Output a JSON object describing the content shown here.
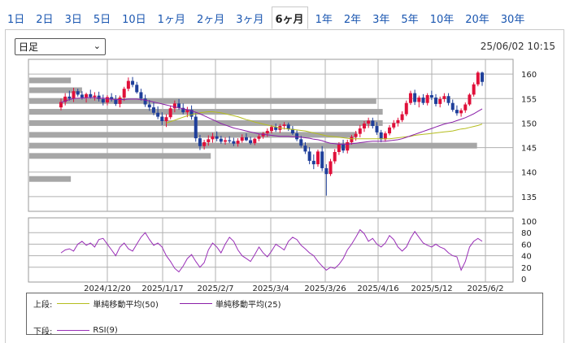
{
  "tabs": [
    {
      "label": "1日",
      "active": false
    },
    {
      "label": "2日",
      "active": false
    },
    {
      "label": "3日",
      "active": false
    },
    {
      "label": "5日",
      "active": false
    },
    {
      "label": "10日",
      "active": false
    },
    {
      "label": "1ヶ月",
      "active": false
    },
    {
      "label": "2ヶ月",
      "active": false
    },
    {
      "label": "3ヶ月",
      "active": false
    },
    {
      "label": "6ヶ月",
      "active": true
    },
    {
      "label": "1年",
      "active": false
    },
    {
      "label": "2年",
      "active": false
    },
    {
      "label": "3年",
      "active": false
    },
    {
      "label": "5年",
      "active": false
    },
    {
      "label": "10年",
      "active": false
    },
    {
      "label": "20年",
      "active": false
    },
    {
      "label": "30年",
      "active": false
    }
  ],
  "select": {
    "value": "日足"
  },
  "datetime": "25/06/02 10:15",
  "legend": {
    "upper_label": "上段:",
    "lower_label": "下段:",
    "sma50": "単純移動平均(50)",
    "sma25": "単純移動平均(25)",
    "rsi": "RSI(9)"
  },
  "colors": {
    "up": "#e0103a",
    "down": "#1f3f9a",
    "sma50": "#b5bd1e",
    "sma25": "#8a1fa8",
    "rsi": "#9a2fb8",
    "volume_bar": "#a6a6a6",
    "grid": "#b0b0b0",
    "link": "#1a56b0"
  },
  "chart_data": [
    {
      "type": "candlestick",
      "ylim": [
        132,
        163
      ],
      "yticks": [
        135,
        140,
        145,
        150,
        155,
        160
      ],
      "xticks": [
        "2024/12/20",
        "2025/1/17",
        "2025/2/7",
        "2025/3/4",
        "2025/3/26",
        "2025/4/16",
        "2025/5/12",
        "2025/6/2"
      ],
      "candles": [
        [
          153.2,
          155.0,
          152.6,
          154.3
        ],
        [
          154.3,
          156.1,
          153.6,
          155.4
        ],
        [
          155.4,
          156.6,
          154.6,
          155.0
        ],
        [
          155.0,
          157.2,
          154.3,
          156.5
        ],
        [
          156.5,
          157.0,
          155.4,
          155.8
        ],
        [
          155.8,
          156.5,
          154.8,
          155.2
        ],
        [
          155.2,
          156.2,
          154.2,
          155.9
        ],
        [
          155.9,
          156.8,
          155.0,
          155.3
        ],
        [
          155.3,
          156.3,
          154.6,
          155.6
        ],
        [
          155.6,
          156.4,
          154.4,
          154.9
        ],
        [
          154.9,
          155.8,
          153.6,
          154.2
        ],
        [
          154.2,
          155.7,
          153.6,
          155.3
        ],
        [
          155.3,
          156.1,
          154.4,
          154.8
        ],
        [
          154.8,
          155.7,
          153.5,
          153.9
        ],
        [
          153.9,
          155.6,
          153.2,
          155.2
        ],
        [
          155.2,
          157.4,
          154.5,
          157.0
        ],
        [
          157.0,
          159.3,
          156.5,
          158.6
        ],
        [
          158.6,
          159.4,
          157.3,
          157.8
        ],
        [
          157.8,
          158.4,
          156.0,
          156.3
        ],
        [
          156.3,
          157.0,
          154.6,
          155.0
        ],
        [
          155.0,
          155.8,
          153.3,
          153.8
        ],
        [
          153.8,
          154.7,
          152.5,
          153.2
        ],
        [
          153.2,
          154.2,
          151.6,
          152.1
        ],
        [
          152.1,
          153.4,
          150.8,
          151.3
        ],
        [
          151.3,
          152.2,
          149.6,
          150.4
        ],
        [
          150.4,
          151.8,
          149.2,
          151.2
        ],
        [
          151.2,
          153.6,
          150.8,
          153.0
        ],
        [
          153.0,
          154.6,
          152.2,
          154.0
        ],
        [
          154.0,
          154.9,
          152.7,
          153.1
        ],
        [
          153.1,
          154.0,
          151.8,
          152.2
        ],
        [
          152.2,
          153.3,
          151.2,
          152.7
        ],
        [
          152.7,
          153.6,
          150.7,
          151.3
        ],
        [
          151.3,
          152.1,
          146.2,
          146.9
        ],
        [
          146.9,
          147.6,
          144.5,
          145.3
        ],
        [
          145.3,
          146.6,
          144.6,
          146.1
        ],
        [
          146.1,
          147.5,
          145.4,
          146.7
        ],
        [
          146.7,
          148.0,
          146.0,
          147.3
        ],
        [
          147.3,
          148.3,
          146.3,
          146.8
        ],
        [
          146.8,
          147.4,
          145.8,
          146.2
        ],
        [
          146.2,
          147.1,
          145.6,
          146.5
        ],
        [
          146.5,
          147.3,
          145.9,
          146.3
        ],
        [
          146.3,
          147.0,
          145.3,
          145.8
        ],
        [
          145.8,
          146.9,
          145.2,
          146.4
        ],
        [
          146.4,
          147.7,
          146.0,
          147.1
        ],
        [
          147.1,
          147.9,
          146.3,
          146.5
        ],
        [
          146.5,
          147.2,
          145.6,
          145.9
        ],
        [
          145.9,
          147.0,
          145.5,
          146.8
        ],
        [
          146.8,
          147.8,
          146.3,
          147.3
        ],
        [
          147.3,
          148.2,
          146.8,
          147.9
        ],
        [
          147.9,
          148.9,
          147.2,
          148.4
        ],
        [
          148.4,
          149.6,
          147.9,
          149.2
        ],
        [
          149.2,
          149.9,
          148.2,
          148.6
        ],
        [
          148.6,
          149.8,
          148.0,
          149.4
        ],
        [
          149.4,
          150.2,
          148.7,
          149.7
        ],
        [
          149.7,
          150.1,
          148.4,
          148.8
        ],
        [
          148.8,
          149.4,
          147.6,
          147.9
        ],
        [
          147.9,
          148.5,
          146.3,
          146.7
        ],
        [
          146.7,
          147.4,
          145.0,
          145.4
        ],
        [
          145.4,
          146.1,
          143.7,
          144.2
        ],
        [
          144.2,
          145.1,
          141.6,
          142.3
        ],
        [
          142.3,
          143.6,
          140.6,
          141.6
        ],
        [
          141.6,
          144.6,
          141.1,
          144.2
        ],
        [
          144.2,
          145.3,
          140.2,
          140.8
        ],
        [
          140.8,
          141.6,
          135.2,
          139.6
        ],
        [
          139.6,
          142.7,
          139.2,
          142.2
        ],
        [
          142.2,
          144.7,
          141.7,
          144.1
        ],
        [
          144.1,
          146.1,
          143.5,
          145.6
        ],
        [
          145.6,
          146.6,
          143.9,
          144.4
        ],
        [
          144.4,
          146.6,
          143.8,
          146.1
        ],
        [
          146.1,
          147.6,
          145.6,
          147.2
        ],
        [
          147.2,
          148.4,
          146.4,
          147.8
        ],
        [
          147.8,
          149.6,
          147.1,
          148.9
        ],
        [
          148.9,
          150.4,
          148.2,
          149.9
        ],
        [
          149.9,
          151.1,
          149.0,
          150.5
        ],
        [
          150.5,
          151.1,
          148.9,
          149.4
        ],
        [
          149.4,
          150.2,
          147.6,
          148.1
        ],
        [
          148.1,
          148.6,
          146.1,
          146.7
        ],
        [
          146.7,
          148.3,
          146.2,
          147.9
        ],
        [
          147.9,
          149.6,
          147.5,
          149.1
        ],
        [
          149.1,
          150.6,
          148.7,
          150.0
        ],
        [
          150.0,
          151.1,
          149.3,
          150.6
        ],
        [
          150.6,
          152.4,
          150.2,
          151.8
        ],
        [
          151.8,
          154.6,
          151.4,
          154.1
        ],
        [
          154.1,
          156.6,
          153.7,
          156.1
        ],
        [
          156.1,
          156.8,
          153.7,
          154.3
        ],
        [
          154.3,
          155.6,
          153.2,
          155.2
        ],
        [
          155.2,
          155.9,
          153.7,
          154.1
        ],
        [
          154.1,
          156.1,
          153.6,
          155.7
        ],
        [
          155.7,
          156.6,
          154.7,
          155.2
        ],
        [
          155.2,
          155.9,
          153.4,
          153.9
        ],
        [
          153.9,
          155.4,
          153.2,
          154.9
        ],
        [
          154.9,
          156.1,
          154.3,
          155.5
        ],
        [
          155.5,
          156.1,
          153.6,
          154.1
        ],
        [
          154.1,
          154.8,
          152.3,
          152.7
        ],
        [
          152.7,
          153.6,
          151.5,
          152.0
        ],
        [
          152.0,
          153.0,
          151.3,
          152.6
        ],
        [
          152.6,
          154.2,
          152.1,
          153.8
        ],
        [
          153.8,
          156.1,
          153.5,
          155.8
        ],
        [
          155.8,
          158.3,
          155.4,
          157.9
        ],
        [
          157.9,
          160.6,
          157.5,
          160.3
        ],
        [
          160.3,
          160.5,
          157.6,
          158.4
        ]
      ],
      "sma25": [
        154.2,
        154.5,
        154.8,
        155.0,
        155.1,
        155.1,
        155.2,
        155.2,
        155.2,
        155.1,
        155.1,
        155.0,
        154.9,
        154.8,
        154.8,
        154.8,
        154.9,
        154.9,
        154.9,
        154.8,
        154.7,
        154.5,
        154.3,
        154.1,
        153.9,
        153.7,
        153.5,
        153.3,
        153.1,
        152.9,
        152.7,
        152.5,
        152.2,
        151.9,
        151.5,
        151.1,
        150.7,
        150.3,
        149.9,
        149.6,
        149.3,
        149.0,
        148.8,
        148.6,
        148.4,
        148.2,
        148.0,
        147.8,
        147.7,
        147.6,
        147.5,
        147.4,
        147.3,
        147.3,
        147.3,
        147.2,
        147.2,
        147.1,
        147.0,
        146.9,
        146.7,
        146.6,
        146.4,
        146.1,
        145.9,
        145.8,
        145.7,
        145.7,
        145.7,
        145.8,
        145.9,
        146.0,
        146.1,
        146.2,
        146.3,
        146.3,
        146.3,
        146.3,
        146.4,
        146.5,
        146.6,
        146.8,
        147.1,
        147.4,
        147.7,
        148.0,
        148.3,
        148.6,
        148.9,
        149.2,
        149.5,
        149.8,
        150.0,
        150.2,
        150.5,
        150.8,
        151.1,
        151.5,
        151.9,
        152.4,
        152.9
      ],
      "sma50": [
        null,
        null,
        null,
        null,
        null,
        null,
        null,
        null,
        null,
        null,
        null,
        null,
        null,
        null,
        null,
        null,
        null,
        null,
        null,
        null,
        null,
        null,
        null,
        null,
        null,
        150.0,
        150.3,
        150.6,
        150.9,
        151.2,
        151.5,
        151.7,
        151.9,
        152.1,
        152.2,
        152.3,
        152.3,
        152.2,
        152.1,
        151.9,
        151.7,
        151.5,
        151.3,
        151.0,
        150.7,
        150.5,
        150.2,
        150.0,
        149.8,
        149.6,
        149.4,
        149.2,
        149.0,
        148.9,
        148.8,
        148.7,
        148.6,
        148.5,
        148.4,
        148.2,
        148.0,
        147.8,
        147.6,
        147.4,
        147.3,
        147.2,
        147.1,
        147.0,
        146.9,
        146.8,
        146.8,
        146.8,
        146.8,
        146.8,
        146.8,
        146.8,
        146.8,
        146.8,
        146.8,
        146.9,
        147.0,
        147.1,
        147.2,
        147.3,
        147.5,
        147.6,
        147.7,
        147.8,
        147.9,
        148.0,
        148.1,
        148.2,
        148.3,
        148.4,
        148.6,
        148.8,
        148.9,
        149.1,
        149.3,
        149.5,
        149.8
      ]
    },
    {
      "type": "bar",
      "orientation": "horizontal",
      "note": "price-by-volume bars",
      "bars": [
        {
          "price": 158.7,
          "value": 52
        },
        {
          "price": 156.7,
          "value": 66
        },
        {
          "price": 154.5,
          "value": 434
        },
        {
          "price": 152.3,
          "value": 442
        },
        {
          "price": 150.0,
          "value": 442
        },
        {
          "price": 147.6,
          "value": 410
        },
        {
          "price": 145.4,
          "value": 560
        },
        {
          "price": 143.3,
          "value": 227
        },
        {
          "price": 138.6,
          "value": 52
        }
      ]
    },
    {
      "type": "line",
      "ylim": [
        0,
        100
      ],
      "yticks": [
        0,
        20,
        40,
        60,
        80,
        100
      ],
      "name": "RSI(9)",
      "values": [
        45,
        50,
        52,
        48,
        60,
        65,
        58,
        62,
        55,
        68,
        70,
        60,
        50,
        40,
        55,
        62,
        52,
        48,
        60,
        72,
        80,
        68,
        58,
        62,
        55,
        40,
        30,
        18,
        12,
        22,
        35,
        42,
        30,
        20,
        28,
        50,
        62,
        55,
        45,
        60,
        72,
        65,
        50,
        40,
        35,
        30,
        42,
        55,
        45,
        38,
        48,
        60,
        55,
        50,
        65,
        72,
        68,
        58,
        52,
        45,
        40,
        30,
        22,
        15,
        20,
        18,
        25,
        35,
        50,
        60,
        72,
        85,
        78,
        65,
        70,
        60,
        55,
        62,
        75,
        68,
        55,
        48,
        55,
        70,
        82,
        72,
        62,
        58,
        55,
        60,
        55,
        52,
        45,
        40,
        38,
        15,
        30,
        55,
        65,
        70,
        65
      ]
    }
  ]
}
